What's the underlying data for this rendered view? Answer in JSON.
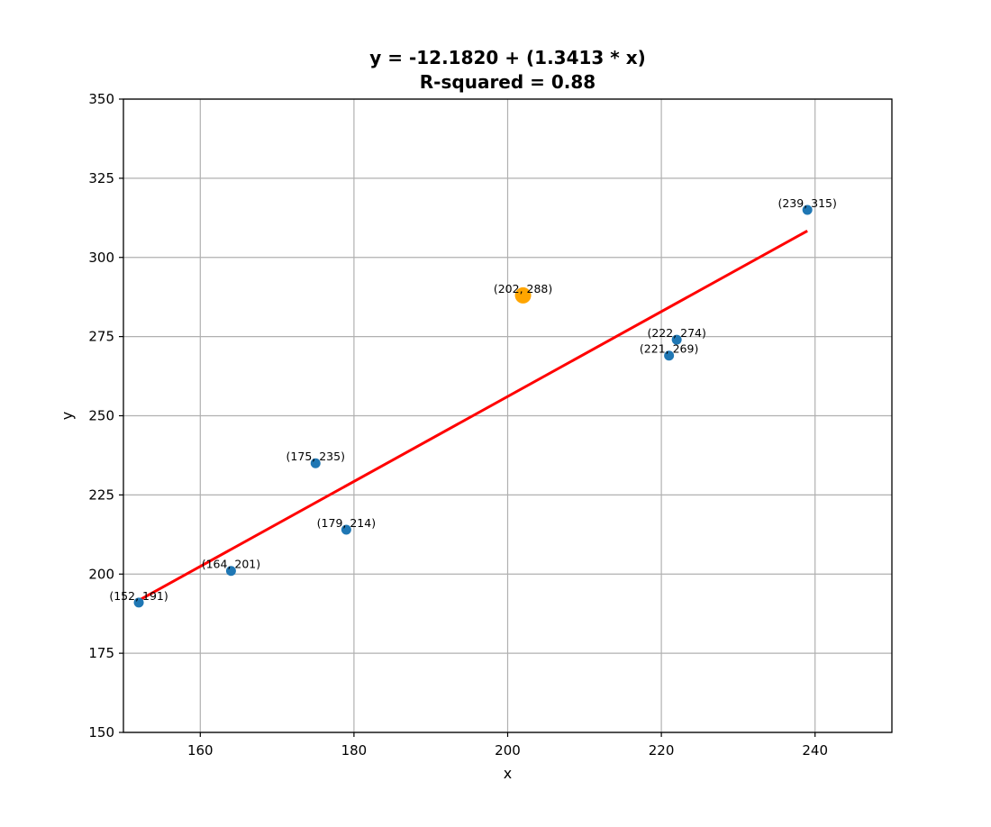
{
  "chart_data": {
    "type": "scatter",
    "title": "y = -12.1820 + (1.3413 * x)",
    "subtitle": "R-squared = 0.88",
    "xlabel": "x",
    "ylabel": "y",
    "xlim": [
      150,
      250
    ],
    "ylim": [
      150,
      350
    ],
    "xticks": [
      160,
      180,
      200,
      220,
      240
    ],
    "yticks": [
      150,
      175,
      200,
      225,
      250,
      275,
      300,
      325,
      350
    ],
    "grid": true,
    "points": [
      {
        "x": 152,
        "y": 191,
        "label": "(152, 191)",
        "highlight": false
      },
      {
        "x": 164,
        "y": 201,
        "label": "(164, 201)",
        "highlight": false
      },
      {
        "x": 175,
        "y": 235,
        "label": "(175, 235)",
        "highlight": false
      },
      {
        "x": 179,
        "y": 214,
        "label": "(179, 214)",
        "highlight": false
      },
      {
        "x": 202,
        "y": 288,
        "label": "(202, 288)",
        "highlight": true
      },
      {
        "x": 221,
        "y": 269,
        "label": "(221, 269)",
        "highlight": false
      },
      {
        "x": 222,
        "y": 274,
        "label": "(222, 274)",
        "highlight": false
      },
      {
        "x": 239,
        "y": 315,
        "label": "(239, 315)",
        "highlight": false
      }
    ],
    "fit_line": {
      "intercept": -12.182,
      "slope": 1.3413,
      "x_range": [
        152,
        239
      ]
    },
    "colors": {
      "points": "#1f77b4",
      "highlight": "#ffa500",
      "fit_line": "#ff0000",
      "grid": "#b0b0b0"
    }
  }
}
